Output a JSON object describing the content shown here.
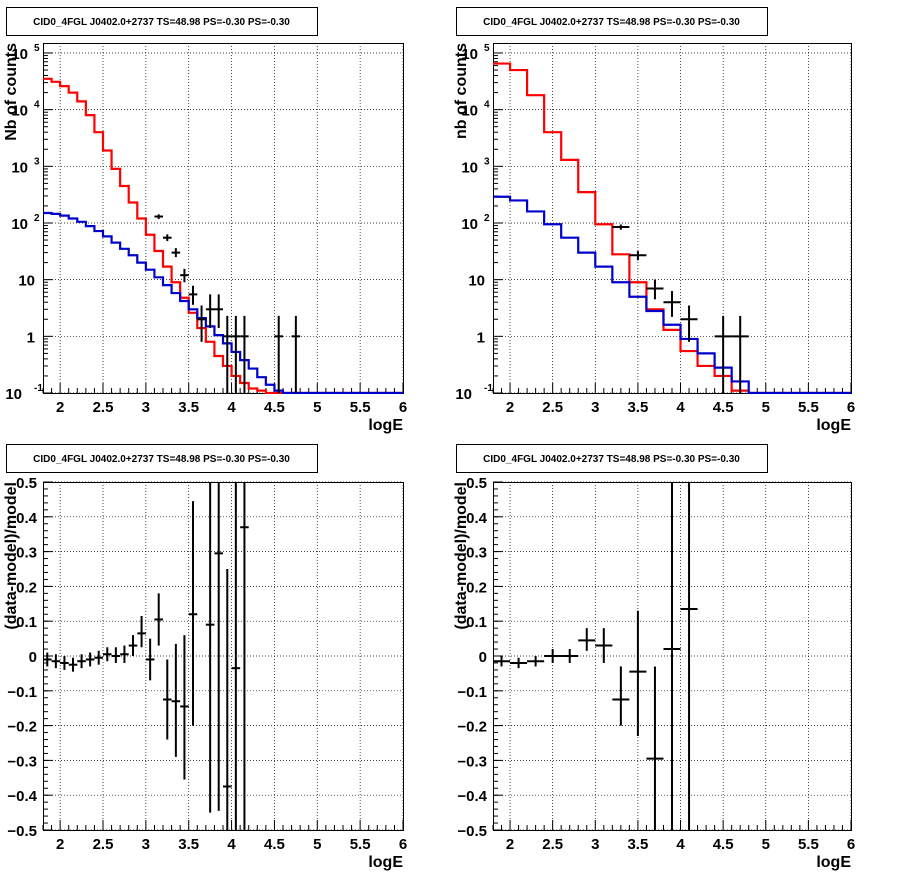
{
  "colors": {
    "data": "#000000",
    "total": "#ff0000",
    "component": "#0000cc",
    "grid": "#000000"
  },
  "chart_data": [
    {
      "type": "line",
      "title": "CID0_4FGL J0402.0+2737 TS=48.98 PS=-0.30 PS=-0.30",
      "xlabel": "logE",
      "ylabel": "Nb of counts",
      "xlim": [
        1.8,
        6.0
      ],
      "ylim": [
        0.1,
        150000
      ],
      "yscale": "log",
      "grid": true,
      "xticks": [
        "2",
        "2.5",
        "3",
        "3.5",
        "4",
        "4.5",
        "5",
        "5.5",
        "6"
      ],
      "yticks": [
        "10^-1",
        "1",
        "10",
        "10^2",
        "10^3",
        "10^4",
        "10^5"
      ],
      "bin_edges": [
        1.8,
        1.9,
        2.0,
        2.1,
        2.2,
        2.3,
        2.4,
        2.5,
        2.6,
        2.7,
        2.8,
        2.9,
        3.0,
        3.1,
        3.2,
        3.3,
        3.4,
        3.5,
        3.6,
        3.7,
        3.8,
        3.9,
        4.0,
        4.1,
        4.2,
        4.3,
        4.4,
        4.5,
        4.6,
        4.7,
        4.8,
        4.9,
        5.0,
        5.1,
        5.2,
        5.3,
        5.4,
        5.5,
        5.6,
        5.7,
        5.8,
        5.9,
        6.0
      ],
      "series": [
        {
          "values": [
            35000,
            31000,
            26000,
            20000,
            14000,
            8000,
            4000,
            1900,
            900,
            450,
            230,
            120,
            62,
            32,
            17,
            9,
            4.8,
            2.6,
            1.4,
            0.8,
            0.45,
            0.3,
            0.2,
            0.15,
            0.12,
            0.11,
            0.1,
            0.1,
            0.1,
            0.1,
            0.1,
            0.1,
            0.1,
            0.1,
            0.1,
            0.1,
            0.1,
            0.1,
            0.1,
            0.1,
            0.1,
            0.1
          ],
          "color": "#ff0000"
        },
        {
          "values": [
            150,
            145,
            135,
            120,
            105,
            88,
            72,
            58,
            45,
            35,
            27,
            20,
            15,
            11,
            8,
            5.8,
            4.2,
            3,
            2.1,
            1.5,
            1.05,
            0.75,
            0.53,
            0.38,
            0.27,
            0.19,
            0.14,
            0.11,
            0.1,
            0.1,
            0.1,
            0.1,
            0.1,
            0.1,
            0.1,
            0.1,
            0.1,
            0.1,
            0.1,
            0.1,
            0.1,
            0.1
          ],
          "color": "#0000cc"
        }
      ],
      "points": [
        {
          "x": 3.15,
          "y": 130,
          "xerr": 0.05,
          "ylo": 118,
          "yhi": 142
        },
        {
          "x": 3.25,
          "y": 55,
          "xerr": 0.05,
          "ylo": 48,
          "yhi": 63
        },
        {
          "x": 3.35,
          "y": 30,
          "xerr": 0.05,
          "ylo": 25,
          "yhi": 36
        },
        {
          "x": 3.45,
          "y": 12,
          "xerr": 0.05,
          "ylo": 9,
          "yhi": 15.5
        },
        {
          "x": 3.55,
          "y": 5.5,
          "xerr": 0.05,
          "ylo": 3.6,
          "yhi": 7.8
        },
        {
          "x": 3.65,
          "y": 2,
          "xerr": 0.05,
          "ylo": 0.8,
          "yhi": 3.5
        },
        {
          "x": 3.75,
          "y": 3,
          "xerr": 0.05,
          "ylo": 1.4,
          "yhi": 5.5
        },
        {
          "x": 3.85,
          "y": 3,
          "xerr": 0.05,
          "ylo": 1.4,
          "yhi": 5.5
        },
        {
          "x": 3.95,
          "y": 1,
          "xerr": 0.05,
          "ylo": 0.1,
          "yhi": 2.3
        },
        {
          "x": 4.05,
          "y": 1,
          "xerr": 0.05,
          "ylo": 0.1,
          "yhi": 2.3
        },
        {
          "x": 4.15,
          "y": 1,
          "xerr": 0.05,
          "ylo": 0.1,
          "yhi": 2.3
        },
        {
          "x": 4.55,
          "y": 1,
          "xerr": 0.05,
          "ylo": 0.1,
          "yhi": 2.3
        },
        {
          "x": 4.75,
          "y": 1,
          "xerr": 0.05,
          "ylo": 0.1,
          "yhi": 2.3
        }
      ]
    },
    {
      "type": "line",
      "title": "CID0_4FGL J0402.0+2737 TS=48.98 PS=-0.30 PS=-0.30",
      "xlabel": "logE",
      "ylabel": "nb of counts",
      "xlim": [
        1.8,
        6.0
      ],
      "ylim": [
        0.1,
        150000
      ],
      "yscale": "log",
      "grid": true,
      "xticks": [
        "2",
        "2.5",
        "3",
        "3.5",
        "4",
        "4.5",
        "5",
        "5.5",
        "6"
      ],
      "yticks": [
        "10^-1",
        "1",
        "10",
        "10^2",
        "10^3",
        "10^4",
        "10^5"
      ],
      "bin_edges": [
        1.8,
        2.0,
        2.2,
        2.4,
        2.6,
        2.8,
        3.0,
        3.2,
        3.4,
        3.6,
        3.8,
        4.0,
        4.2,
        4.4,
        4.6,
        4.8,
        5.0,
        5.2,
        5.4,
        5.6,
        5.8,
        6.0
      ],
      "series": [
        {
          "values": [
            65000,
            50000,
            18000,
            4000,
            1300,
            350,
            95,
            28,
            9,
            3,
            1.3,
            0.55,
            0.3,
            0.2,
            0.11,
            0.1,
            0.1,
            0.1,
            0.1,
            0.1,
            0.1
          ],
          "color": "#ff0000"
        },
        {
          "values": [
            290,
            250,
            160,
            95,
            55,
            30,
            17,
            9,
            5,
            2.8,
            1.6,
            0.9,
            0.5,
            0.28,
            0.16,
            0.1,
            0.1,
            0.1,
            0.1,
            0.1,
            0.1
          ],
          "color": "#0000cc"
        }
      ],
      "points": [
        {
          "x": 3.3,
          "y": 85,
          "xerr": 0.1,
          "ylo": 76,
          "yhi": 94
        },
        {
          "x": 3.5,
          "y": 27,
          "xerr": 0.1,
          "ylo": 22,
          "yhi": 32
        },
        {
          "x": 3.7,
          "y": 7,
          "xerr": 0.1,
          "ylo": 4.5,
          "yhi": 10
        },
        {
          "x": 3.9,
          "y": 4,
          "xerr": 0.1,
          "ylo": 2.2,
          "yhi": 6.3
        },
        {
          "x": 4.1,
          "y": 2,
          "xerr": 0.1,
          "ylo": 0.8,
          "yhi": 3.5
        },
        {
          "x": 4.5,
          "y": 1,
          "xerr": 0.1,
          "ylo": 0.1,
          "yhi": 2.3
        },
        {
          "x": 4.7,
          "y": 1,
          "xerr": 0.1,
          "ylo": 0.1,
          "yhi": 2.3
        }
      ]
    },
    {
      "type": "scatter",
      "title": "CID0_4FGL J0402.0+2737 TS=48.98 PS=-0.30 PS=-0.30",
      "xlabel": "logE",
      "ylabel": "(data-model)/model",
      "xlim": [
        1.8,
        6.0
      ],
      "ylim": [
        -0.5,
        0.5
      ],
      "grid": true,
      "xticks": [
        "2",
        "2.5",
        "3",
        "3.5",
        "4",
        "4.5",
        "5",
        "5.5",
        "6"
      ],
      "yticks": [
        "−0.5",
        "−0.4",
        "−0.3",
        "−0.2",
        "−0.1",
        "0",
        "0.1",
        "0.2",
        "0.3",
        "0.4",
        "0.5"
      ],
      "points": [
        {
          "x": 1.85,
          "y": -0.01,
          "xerr": 0.05,
          "ylo": -0.03,
          "yhi": 0.01
        },
        {
          "x": 1.95,
          "y": -0.015,
          "xerr": 0.05,
          "ylo": -0.035,
          "yhi": 0.005
        },
        {
          "x": 2.05,
          "y": -0.02,
          "xerr": 0.05,
          "ylo": -0.04,
          "yhi": 0.0
        },
        {
          "x": 2.15,
          "y": -0.025,
          "xerr": 0.05,
          "ylo": -0.045,
          "yhi": -0.005
        },
        {
          "x": 2.25,
          "y": -0.015,
          "xerr": 0.05,
          "ylo": -0.035,
          "yhi": 0.005
        },
        {
          "x": 2.35,
          "y": -0.01,
          "xerr": 0.05,
          "ylo": -0.03,
          "yhi": 0.01
        },
        {
          "x": 2.45,
          "y": -0.005,
          "xerr": 0.05,
          "ylo": -0.025,
          "yhi": 0.015
        },
        {
          "x": 2.55,
          "y": 0.005,
          "xerr": 0.05,
          "ylo": -0.015,
          "yhi": 0.025
        },
        {
          "x": 2.65,
          "y": 0.0,
          "xerr": 0.05,
          "ylo": -0.02,
          "yhi": 0.025
        },
        {
          "x": 2.75,
          "y": 0.005,
          "xerr": 0.05,
          "ylo": -0.02,
          "yhi": 0.03
        },
        {
          "x": 2.85,
          "y": 0.03,
          "xerr": 0.05,
          "ylo": 0.0,
          "yhi": 0.06
        },
        {
          "x": 2.95,
          "y": 0.065,
          "xerr": 0.05,
          "ylo": 0.025,
          "yhi": 0.115
        },
        {
          "x": 3.05,
          "y": -0.01,
          "xerr": 0.05,
          "ylo": -0.07,
          "yhi": 0.05
        },
        {
          "x": 3.15,
          "y": 0.105,
          "xerr": 0.05,
          "ylo": 0.03,
          "yhi": 0.18
        },
        {
          "x": 3.25,
          "y": -0.125,
          "xerr": 0.05,
          "ylo": -0.24,
          "yhi": -0.01
        },
        {
          "x": 3.35,
          "y": -0.13,
          "xerr": 0.05,
          "ylo": -0.29,
          "yhi": 0.035
        },
        {
          "x": 3.45,
          "y": -0.145,
          "xerr": 0.05,
          "ylo": -0.355,
          "yhi": 0.06
        },
        {
          "x": 3.55,
          "y": 0.12,
          "xerr": 0.05,
          "ylo": -0.2,
          "yhi": 0.445
        },
        {
          "x": 3.75,
          "y": 0.09,
          "xerr": 0.05,
          "ylo": -0.45,
          "yhi": 0.5
        },
        {
          "x": 3.85,
          "y": 0.295,
          "xerr": 0.05,
          "ylo": -0.445,
          "yhi": 0.5
        },
        {
          "x": 3.95,
          "y": -0.375,
          "xerr": 0.05,
          "ylo": -0.5,
          "yhi": 0.25
        },
        {
          "x": 4.05,
          "y": -0.035,
          "xerr": 0.05,
          "ylo": -0.5,
          "yhi": 0.5
        },
        {
          "x": 4.15,
          "y": 0.37,
          "xerr": 0.05,
          "ylo": -0.5,
          "yhi": 0.5
        }
      ]
    },
    {
      "type": "scatter",
      "title": "CID0_4FGL J0402.0+2737 TS=48.98 PS=-0.30 PS=-0.30",
      "xlabel": "logE",
      "ylabel": "(data-model)/model",
      "xlim": [
        1.8,
        6.0
      ],
      "ylim": [
        -0.5,
        0.5
      ],
      "grid": true,
      "xticks": [
        "2",
        "2.5",
        "3",
        "3.5",
        "4",
        "4.5",
        "5",
        "5.5",
        "6"
      ],
      "yticks": [
        "−0.5",
        "−0.4",
        "−0.3",
        "−0.2",
        "−0.1",
        "0",
        "0.1",
        "0.2",
        "0.3",
        "0.4",
        "0.5"
      ],
      "points": [
        {
          "x": 1.9,
          "y": -0.015,
          "xerr": 0.1,
          "ylo": -0.03,
          "yhi": 0.0
        },
        {
          "x": 2.1,
          "y": -0.02,
          "xerr": 0.1,
          "ylo": -0.035,
          "yhi": -0.005
        },
        {
          "x": 2.3,
          "y": -0.015,
          "xerr": 0.1,
          "ylo": -0.03,
          "yhi": 0.0
        },
        {
          "x": 2.5,
          "y": 0.0,
          "xerr": 0.1,
          "ylo": -0.02,
          "yhi": 0.02
        },
        {
          "x": 2.7,
          "y": 0.0,
          "xerr": 0.1,
          "ylo": -0.02,
          "yhi": 0.02
        },
        {
          "x": 2.9,
          "y": 0.045,
          "xerr": 0.1,
          "ylo": 0.015,
          "yhi": 0.08
        },
        {
          "x": 3.1,
          "y": 0.03,
          "xerr": 0.1,
          "ylo": -0.02,
          "yhi": 0.08
        },
        {
          "x": 3.3,
          "y": -0.125,
          "xerr": 0.1,
          "ylo": -0.2,
          "yhi": -0.03
        },
        {
          "x": 3.5,
          "y": -0.045,
          "xerr": 0.1,
          "ylo": -0.23,
          "yhi": 0.13
        },
        {
          "x": 3.7,
          "y": -0.295,
          "xerr": 0.1,
          "ylo": -0.5,
          "yhi": -0.03
        },
        {
          "x": 3.9,
          "y": 0.02,
          "xerr": 0.1,
          "ylo": -0.5,
          "yhi": 0.5
        },
        {
          "x": 4.1,
          "y": 0.135,
          "xerr": 0.1,
          "ylo": -0.5,
          "yhi": 0.5
        }
      ]
    }
  ]
}
